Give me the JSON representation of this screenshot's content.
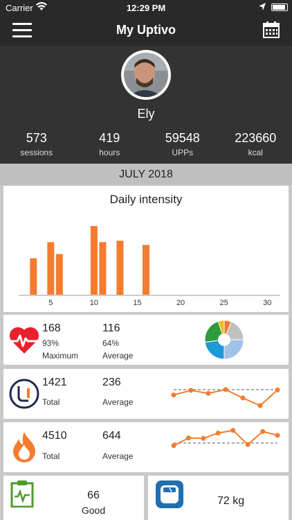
{
  "status_bar": {
    "carrier": "Carrier",
    "time": "12:29 PM"
  },
  "navbar": {
    "title": "My Uptivo",
    "menu_icon": "hamburger-menu-icon",
    "calendar_icon": "calendar-icon"
  },
  "profile": {
    "name": "Ely",
    "stats": [
      {
        "value": "573",
        "label": "sessions"
      },
      {
        "value": "419",
        "label": "hours"
      },
      {
        "value": "59548",
        "label": "UPPs"
      },
      {
        "value": "223660",
        "label": "kcal"
      }
    ]
  },
  "month": "JULY 2018",
  "colors": {
    "accent": "#f47c30",
    "dark": "#333333",
    "heart": "#e8212c",
    "green": "#4c9a2a",
    "blue": "#1f6fb2"
  },
  "chart_data": {
    "type": "bar",
    "title": "Daily intensity",
    "xlabel": "",
    "ylabel": "",
    "x": [
      3,
      5,
      6,
      10,
      11,
      13,
      16
    ],
    "values": [
      52,
      75,
      58,
      98,
      75,
      77,
      71
    ],
    "xlim": [
      1,
      31
    ],
    "ylim": [
      0,
      100
    ],
    "xticks": [
      "5",
      "10",
      "15",
      "20",
      "25",
      "30"
    ],
    "grid": false
  },
  "heart": {
    "value1": "168",
    "pct1": "93%",
    "label1": "Maximum",
    "value2": "116",
    "pct2": "64%",
    "label2": "Average",
    "zones": [
      {
        "color": "#f47c30",
        "value": 6
      },
      {
        "color": "#c0c0c0",
        "value": 19
      },
      {
        "color": "#9fc3e6",
        "value": 25
      },
      {
        "color": "#1d9ad6",
        "value": 23
      },
      {
        "color": "#2e9b3c",
        "value": 22
      },
      {
        "color": "#f1b820",
        "value": 5
      }
    ]
  },
  "upp": {
    "value1": "1421",
    "label1": "Total",
    "value2": "236",
    "label2": "Average",
    "spark": [
      48,
      60,
      52,
      62,
      40,
      20,
      61
    ]
  },
  "kcal": {
    "value1": "4510",
    "label1": "Total",
    "value2": "644",
    "label2": "Average",
    "spark": [
      55,
      75,
      74,
      88,
      95,
      58,
      92,
      82
    ]
  },
  "checklist": {
    "value": "66",
    "label": "Good"
  },
  "weight": {
    "value": "72 kg"
  }
}
